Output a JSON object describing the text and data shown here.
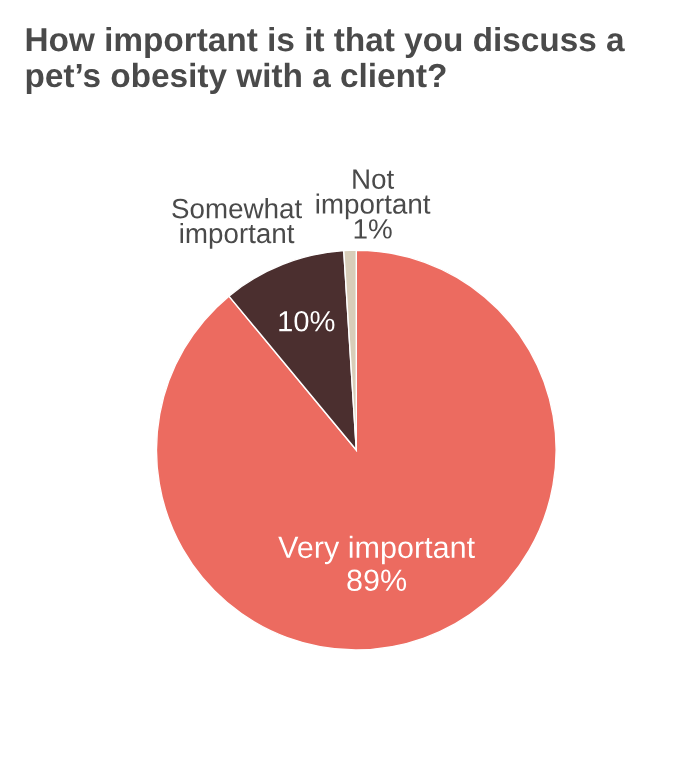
{
  "chart_data": {
    "type": "pie",
    "title": "How important is it that you discuss a pet’s obesity with a client?",
    "categories": [
      "Very important",
      "Somewhat important",
      "Not important"
    ],
    "values": [
      89,
      10,
      1
    ],
    "value_labels": [
      "89%",
      "10%",
      "1%"
    ],
    "colors": [
      "#ec6b60",
      "#4b2f2f",
      "#d8cdb9"
    ],
    "legend": false
  }
}
